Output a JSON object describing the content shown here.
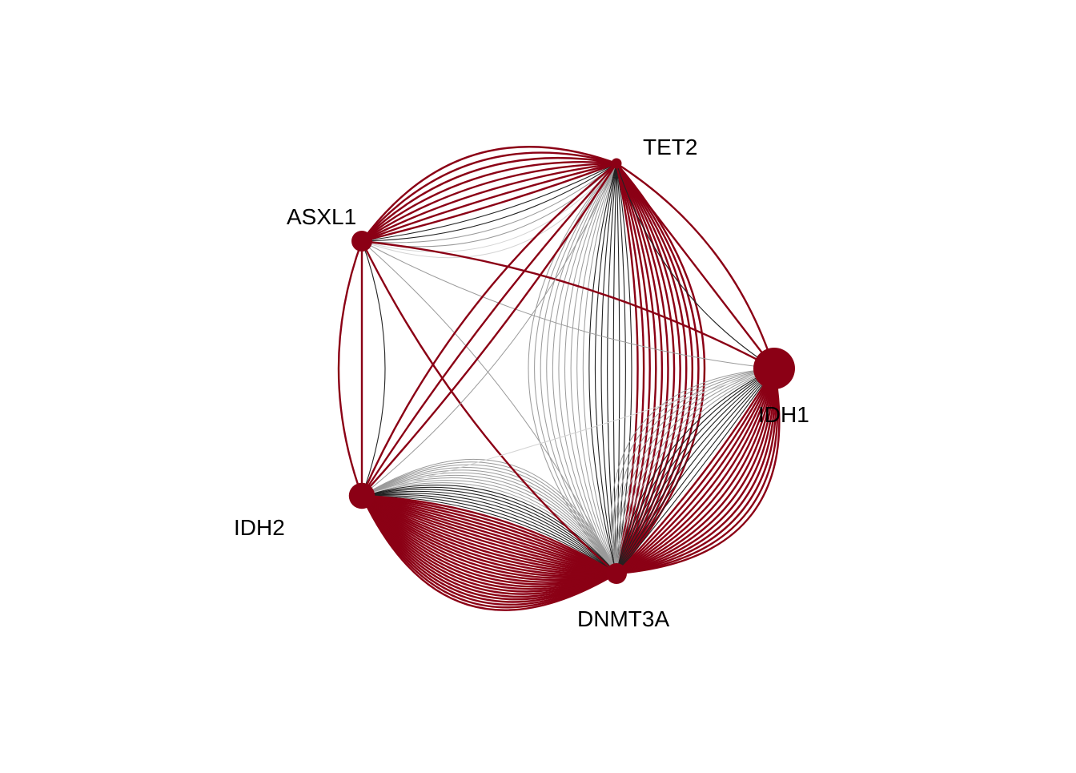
{
  "colors": {
    "node": "#8b0015",
    "edge_red": "#8b0015",
    "edge_dark": "#222222",
    "edge_gray": "#9a9a9a",
    "edge_light": "#d4d4d4",
    "background": "#ffffff"
  },
  "nodes": [
    {
      "id": "TET2",
      "label": "TET2",
      "size": 1
    },
    {
      "id": "ASXL1",
      "label": "ASXL1",
      "size": 2
    },
    {
      "id": "IDH2",
      "label": "IDH2",
      "size": 2.5
    },
    {
      "id": "DNMT3A",
      "label": "DNMT3A",
      "size": 2
    },
    {
      "id": "IDH1",
      "label": "IDH1",
      "size": 4
    }
  ],
  "edge_groups": [
    {
      "from": "TET2",
      "to": "DNMT3A",
      "red": 12,
      "dark": 8,
      "gray": 10,
      "light": 0
    },
    {
      "from": "IDH1",
      "to": "DNMT3A",
      "red": 14,
      "dark": 8,
      "gray": 8,
      "light": 0
    },
    {
      "from": "IDH2",
      "to": "DNMT3A",
      "red": 30,
      "dark": 8,
      "gray": 10,
      "light": 0
    },
    {
      "from": "ASXL1",
      "to": "TET2",
      "red": 8,
      "dark": 2,
      "gray": 2,
      "light": 2
    },
    {
      "from": "TET2",
      "to": "IDH1",
      "red": 2,
      "dark": 1,
      "gray": 0,
      "light": 0
    },
    {
      "from": "ASXL1",
      "to": "IDH1",
      "red": 1,
      "dark": 0,
      "gray": 1,
      "light": 0
    },
    {
      "from": "ASXL1",
      "to": "IDH2",
      "red": 2,
      "dark": 1,
      "gray": 0,
      "light": 0
    },
    {
      "from": "ASXL1",
      "to": "DNMT3A",
      "red": 1,
      "dark": 0,
      "gray": 1,
      "light": 0
    },
    {
      "from": "IDH2",
      "to": "TET2",
      "red": 3,
      "dark": 0,
      "gray": 1,
      "light": 0
    },
    {
      "from": "IDH2",
      "to": "IDH1",
      "red": 0,
      "dark": 0,
      "gray": 0,
      "light": 1
    },
    {
      "from": "DNMT3A",
      "to": "IDH1",
      "red": 0,
      "dark": 0,
      "gray": 0,
      "light": 0
    }
  ]
}
